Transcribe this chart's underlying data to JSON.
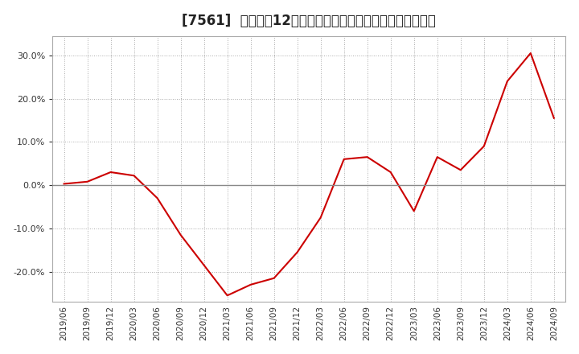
{
  "title": "[7561]  売上高の12か月移動合計の対前年同期増減率の推移",
  "line_color": "#cc0000",
  "background_color": "#ffffff",
  "plot_bg_color": "#ffffff",
  "ylim": [
    -0.27,
    0.345
  ],
  "yticks": [
    -0.2,
    -0.1,
    0.0,
    0.1,
    0.2,
    0.3
  ],
  "dates": [
    "2019/06",
    "2019/09",
    "2019/12",
    "2020/03",
    "2020/06",
    "2020/09",
    "2020/12",
    "2021/03",
    "2021/06",
    "2021/09",
    "2021/12",
    "2022/03",
    "2022/06",
    "2022/09",
    "2022/12",
    "2023/03",
    "2023/06",
    "2023/09",
    "2023/12",
    "2024/03",
    "2024/06",
    "2024/09"
  ],
  "values": [
    0.003,
    0.008,
    0.03,
    0.022,
    -0.03,
    -0.115,
    -0.185,
    -0.255,
    -0.23,
    -0.215,
    -0.155,
    -0.075,
    0.06,
    0.065,
    0.03,
    -0.06,
    0.065,
    0.035,
    0.09,
    0.24,
    0.305,
    0.155
  ]
}
